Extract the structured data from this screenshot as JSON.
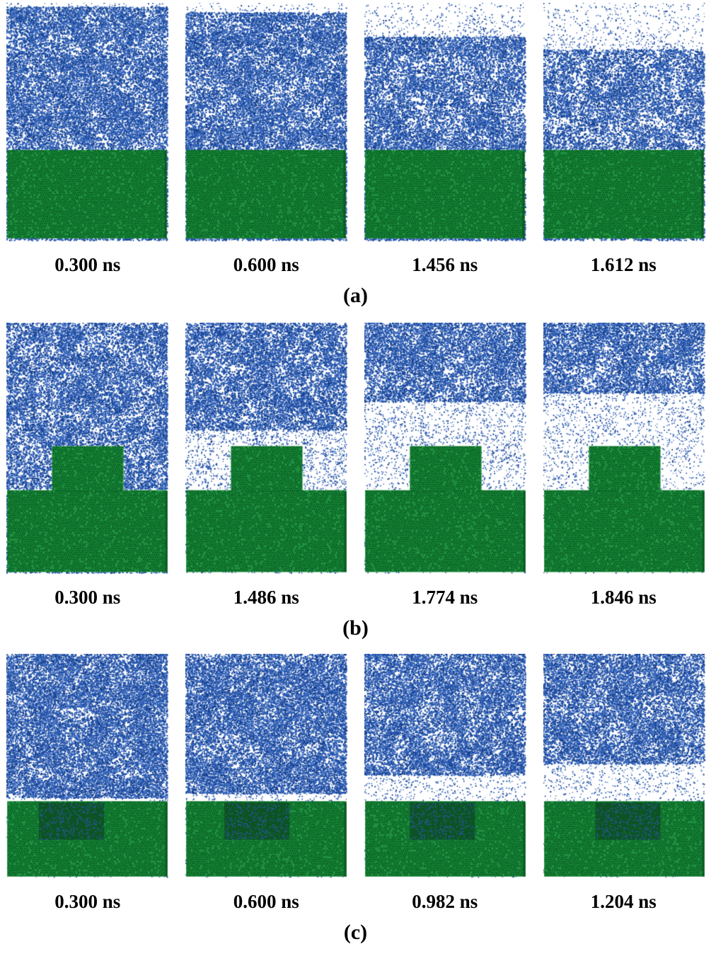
{
  "figure": {
    "colors": {
      "background": "#ffffff",
      "liquid": "#1e4fa8",
      "substrate": "#168336",
      "substrate_dark": "#0a5c22",
      "groove": "#0d5224",
      "label_text": "#000000"
    },
    "rows": [
      {
        "label": "(a)",
        "substrate_type": "flat",
        "panels": [
          {
            "time": "0.300 ns",
            "evaporation": 0.05
          },
          {
            "time": "0.600 ns",
            "evaporation": 0.12
          },
          {
            "time": "1.456 ns",
            "evaporation": 0.42
          },
          {
            "time": "1.612 ns",
            "evaporation": 0.58
          }
        ]
      },
      {
        "label": "(b)",
        "substrate_type": "bump",
        "panels": [
          {
            "time": "0.300 ns",
            "evaporation": 0.03
          },
          {
            "time": "1.486 ns",
            "evaporation": 0.28
          },
          {
            "time": "1.774 ns",
            "evaporation": 0.62
          },
          {
            "time": "1.846 ns",
            "evaporation": 0.72
          }
        ]
      },
      {
        "label": "(c)",
        "substrate_type": "groove",
        "panels": [
          {
            "time": "0.300 ns",
            "evaporation": 0.04
          },
          {
            "time": "0.600 ns",
            "evaporation": 0.1
          },
          {
            "time": "0.982 ns",
            "evaporation": 0.35
          },
          {
            "time": "1.204 ns",
            "evaporation": 0.5
          }
        ]
      }
    ]
  }
}
